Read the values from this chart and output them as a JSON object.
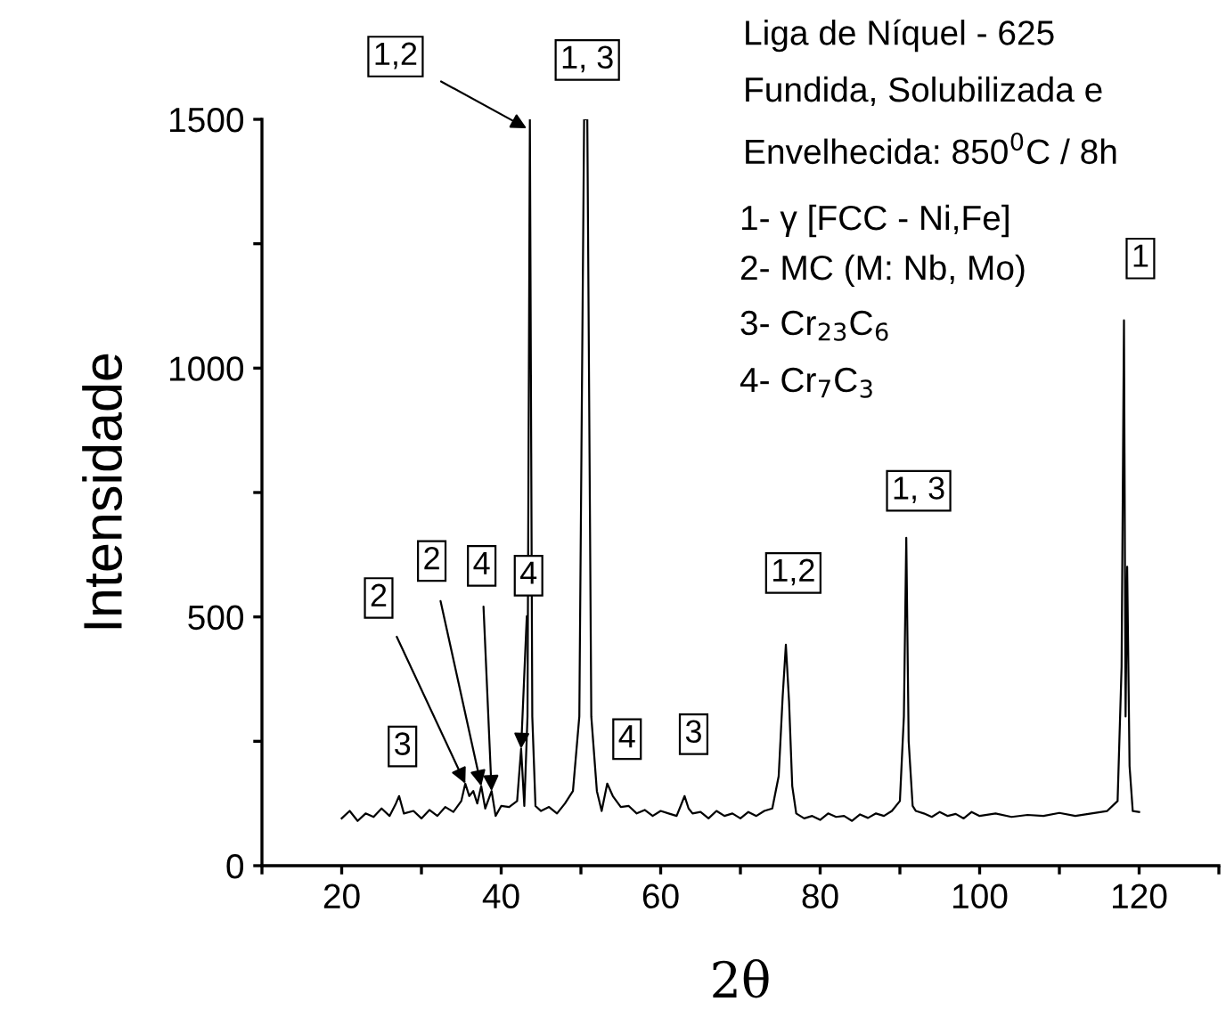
{
  "chart_data": {
    "type": "line",
    "xlabel": "2θ",
    "ylabel": "Intensidade",
    "xlim": [
      10,
      130
    ],
    "ylim": [
      0,
      1500
    ],
    "xticks": [
      {
        "value": 10,
        "label": null
      },
      20,
      {
        "value": 30,
        "label": null
      },
      40,
      {
        "value": 50,
        "label": null
      },
      60,
      {
        "value": 70,
        "label": null
      },
      80,
      {
        "value": 90,
        "label": null
      },
      100,
      {
        "value": 110,
        "label": null
      },
      120,
      {
        "value": 130,
        "label": null
      }
    ],
    "yticks": [
      0,
      {
        "value": 250,
        "label": null
      },
      500,
      {
        "value": 750,
        "label": null
      },
      1000,
      {
        "value": 1250,
        "label": null
      },
      1500
    ],
    "grid": false,
    "legend": false,
    "marker": "none",
    "line_style": "solid",
    "series": [
      {
        "color": "#000000",
        "x": [
          20,
          21,
          22,
          23,
          24,
          25,
          26,
          26.8,
          27.2,
          27.8,
          29,
          30,
          31,
          32,
          33,
          34,
          35,
          35.5,
          36,
          36.5,
          37,
          37.5,
          38,
          38.8,
          39.3,
          40,
          41,
          42,
          42.5,
          42.9,
          43.3,
          43.6,
          43.9,
          44.3,
          45,
          46,
          47,
          48,
          49,
          49.8,
          50.4,
          50.8,
          51.3,
          52,
          52.6,
          53.3,
          54,
          55,
          56,
          57,
          58,
          59,
          60,
          61,
          62,
          63,
          63.5,
          64,
          65,
          66,
          67,
          68,
          69,
          70,
          71,
          72,
          73,
          74,
          74.8,
          75.3,
          75.7,
          76.1,
          76.5,
          77,
          78,
          79,
          80,
          81,
          82,
          83,
          84,
          85,
          86,
          87,
          88,
          89,
          90,
          90.5,
          90.8,
          91.1,
          91.6,
          92,
          93,
          94,
          95,
          96,
          97,
          98,
          99,
          100,
          102,
          104,
          106,
          108,
          110,
          112,
          114,
          116,
          117.3,
          117.8,
          118.1,
          118.3,
          118.5,
          118.8,
          119.2,
          120
        ],
        "values": [
          95,
          110,
          90,
          105,
          98,
          115,
          100,
          125,
          140,
          105,
          110,
          95,
          112,
          100,
          118,
          108,
          130,
          165,
          140,
          150,
          125,
          160,
          115,
          150,
          100,
          120,
          118,
          130,
          235,
          120,
          300,
          1500,
          300,
          120,
          110,
          118,
          105,
          125,
          150,
          300,
          1500,
          1500,
          300,
          150,
          110,
          165,
          140,
          118,
          120,
          105,
          112,
          100,
          110,
          105,
          100,
          140,
          115,
          105,
          108,
          95,
          110,
          100,
          105,
          95,
          108,
          100,
          110,
          115,
          180,
          340,
          444,
          330,
          160,
          105,
          95,
          100,
          92,
          105,
          98,
          100,
          90,
          103,
          96,
          105,
          100,
          110,
          130,
          300,
          659,
          250,
          120,
          110,
          105,
          98,
          108,
          100,
          104,
          95,
          108,
          100,
          105,
          98,
          102,
          100,
          106,
          100,
          105,
          110,
          130,
          400,
          1096,
          300,
          601,
          200,
          110,
          108
        ]
      }
    ],
    "annotations": [
      "Liga de Níquel - 625",
      "Fundida, Solubilizada e",
      "Envelhecida: 850$^{0}$C / 8h",
      "1- γ [FCC - Ni,Fe]",
      "2- MC (M: Nb, Mo)",
      "3- Cr$_{23}$C$_{6}$",
      "4- Cr$_{7}$C$_{3}$",
      {
        "text": "3",
        "x": 27,
        "y": 140
      },
      {
        "text": "2",
        "x": 35.5,
        "y": 165
      },
      {
        "text": "2",
        "x": 37.5,
        "y": 160
      },
      {
        "text": "4",
        "x": 53.3,
        "y": 165
      },
      {
        "text": "4",
        "x": 42.5,
        "y": 235
      },
      {
        "text": "1,2",
        "x": 43.2,
        "y": 1482
      },
      {
        "text": "1, 3",
        "x": 50.8,
        "y": 1500
      },
      {
        "text": "4",
        "x": 38.8,
        "y": 150
      },
      {
        "text": "3",
        "x": 63.2,
        "y": 140
      },
      {
        "text": "1,2",
        "x": 75.7,
        "y": 444
      },
      {
        "text": "1, 3",
        "x": 90.8,
        "y": 659
      },
      {
        "text": "1",
        "x": 118.3,
        "y": 1096
      }
    ]
  }
}
